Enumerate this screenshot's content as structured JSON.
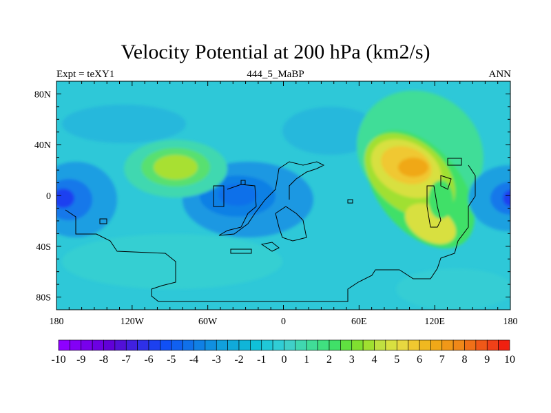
{
  "figure": {
    "title": "Velocity Potential at 200 hPa (km2/s)",
    "left_label": "Expt = teXY1",
    "center_label": "444_5_MaBP",
    "right_label": "ANN"
  },
  "map": {
    "projection": "cylindrical-equidistant",
    "lon_range": [
      -180,
      180
    ],
    "lat_range": [
      -90,
      90
    ],
    "x_ticks": [
      {
        "value": -180,
        "label": "180"
      },
      {
        "value": -120,
        "label": "120W"
      },
      {
        "value": -60,
        "label": "60W"
      },
      {
        "value": 0,
        "label": "0"
      },
      {
        "value": 60,
        "label": "60E"
      },
      {
        "value": 120,
        "label": "120E"
      },
      {
        "value": 180,
        "label": "180"
      }
    ],
    "y_ticks": [
      {
        "value": 80,
        "label": "80N"
      },
      {
        "value": 40,
        "label": "40N"
      },
      {
        "value": 0,
        "label": "0"
      },
      {
        "value": -40,
        "label": "40S"
      },
      {
        "value": -80,
        "label": "80S"
      }
    ],
    "background_color": "#2ec8d8",
    "field_features": [
      {
        "kind": "min",
        "lon": -175,
        "lat": 0,
        "value": -6.5
      },
      {
        "kind": "min",
        "lon": -35,
        "lat": 0,
        "value": -4.5
      },
      {
        "kind": "max",
        "lon": -90,
        "lat": 25,
        "value": 3.2
      },
      {
        "kind": "max",
        "lon": 105,
        "lat": 22,
        "value": 6.8
      },
      {
        "kind": "max",
        "lon": 115,
        "lat": -25,
        "value": 4.5
      },
      {
        "kind": "min",
        "lon": 178,
        "lat": 0,
        "value": -6.5
      }
    ]
  },
  "colorbar": {
    "min": -10,
    "max": 10,
    "step": 0.5,
    "labels": [
      "-10",
      "-9",
      "-8",
      "-7",
      "-6",
      "-5",
      "-4",
      "-3",
      "-2",
      "-1",
      "0",
      "1",
      "2",
      "3",
      "4",
      "5",
      "6",
      "7",
      "8",
      "9",
      "10"
    ],
    "colors": [
      "#8e00ff",
      "#8300f5",
      "#7800eb",
      "#6c00e2",
      "#6100d8",
      "#5210d8",
      "#4020e0",
      "#2e30e8",
      "#1c40f0",
      "#1050f5",
      "#1060f0",
      "#1070ea",
      "#1080e5",
      "#1090e0",
      "#10a0dc",
      "#10aada",
      "#10b5d8",
      "#10c0d8",
      "#20c8d8",
      "#30cdd5",
      "#40d0c8",
      "#40d8b0",
      "#40dd98",
      "#40e080",
      "#40e068",
      "#60e040",
      "#80e030",
      "#a0e030",
      "#c0e040",
      "#d8e040",
      "#e8d840",
      "#f0c830",
      "#f0b820",
      "#f0a818",
      "#f09818",
      "#f08818",
      "#f07018",
      "#f05818",
      "#f04018",
      "#f02010"
    ]
  }
}
